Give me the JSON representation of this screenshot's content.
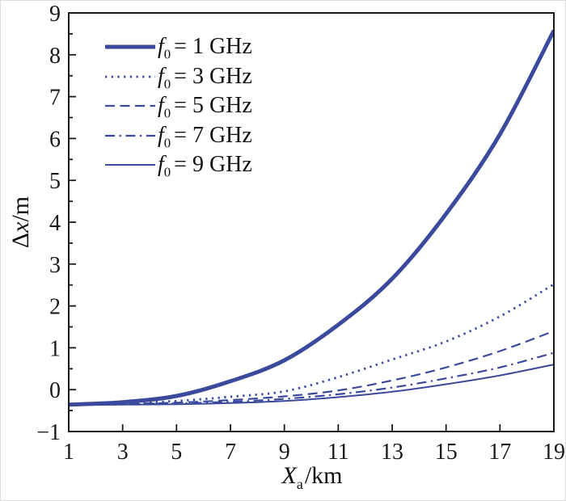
{
  "figure": {
    "background": "#ffffff",
    "frame_border_color": "#dcdcdc"
  },
  "chart_data": {
    "type": "line",
    "title": "",
    "xlabel_parts": {
      "var": "X",
      "sub": "a",
      "suffix": "/km"
    },
    "ylabel_parts": {
      "prefix": "Δ",
      "var": "x",
      "suffix": "/m"
    },
    "xlim": [
      1,
      19
    ],
    "ylim": [
      -1,
      9
    ],
    "grid": false,
    "legend_position": "top-left-inside",
    "line_color": "#3b4a9c",
    "axis_color": "#1a1a1a",
    "x_major_ticks": [
      1,
      3,
      5,
      7,
      9,
      11,
      13,
      15,
      17,
      19
    ],
    "x_tick_labels": [
      "1",
      "3",
      "5",
      "7",
      "9",
      "11",
      "13",
      "15",
      "17",
      "19"
    ],
    "y_major_ticks": [
      -1,
      0,
      1,
      2,
      3,
      4,
      5,
      6,
      7,
      8,
      9
    ],
    "y_minor_ticks": [
      -0.5,
      0.5,
      1.5,
      2.5,
      3.5,
      4.5,
      5.5,
      6.5,
      7.5,
      8.5
    ],
    "y_tick_labels": [
      "−1",
      "0",
      "1",
      "2",
      "3",
      "4",
      "5",
      "6",
      "7",
      "8",
      "9"
    ],
    "legend_var": "f",
    "legend_sub": "0",
    "x": [
      1,
      3,
      5,
      7,
      9,
      11,
      13,
      15,
      17,
      19
    ],
    "series": [
      {
        "name": "f0 = 1 GHz",
        "label_text": "= 1 GHz",
        "style": "solid-thick",
        "values": [
          -0.36,
          -0.3,
          -0.15,
          0.2,
          0.7,
          1.55,
          2.65,
          4.2,
          6.1,
          8.58
        ]
      },
      {
        "name": "f0 = 3 GHz",
        "label_text": "= 3 GHz",
        "style": "dotted",
        "values": [
          -0.36,
          -0.33,
          -0.27,
          -0.17,
          -0.04,
          0.3,
          0.72,
          1.15,
          1.75,
          2.52
        ]
      },
      {
        "name": "f0 = 5 GHz",
        "label_text": "= 5 GHz",
        "style": "dashed",
        "values": [
          -0.36,
          -0.34,
          -0.31,
          -0.25,
          -0.16,
          -0.02,
          0.22,
          0.53,
          0.92,
          1.4
        ]
      },
      {
        "name": "f0 = 7 GHz",
        "label_text": "= 7 GHz",
        "style": "dashdot",
        "values": [
          -0.36,
          -0.35,
          -0.33,
          -0.29,
          -0.22,
          -0.11,
          0.05,
          0.27,
          0.53,
          0.88
        ]
      },
      {
        "name": "f0 = 9 GHz",
        "label_text": "= 9 GHz",
        "style": "solid-thin",
        "values": [
          -0.37,
          -0.36,
          -0.35,
          -0.32,
          -0.27,
          -0.18,
          -0.05,
          0.13,
          0.34,
          0.6
        ]
      }
    ]
  }
}
